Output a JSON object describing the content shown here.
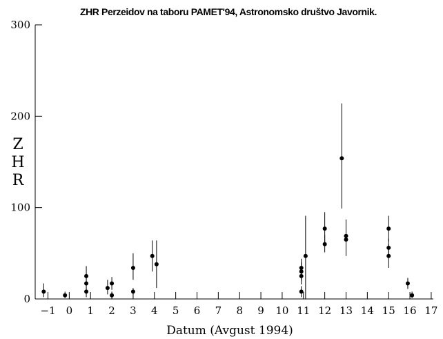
{
  "chart_data": {
    "type": "scatter",
    "title": "ZHR Perzeidov na taboru PAMET'94, Astronomsko društvo Javornik.",
    "xlabel": "Datum (Avgust 1994)",
    "ylabel_letters": [
      "Z",
      "H",
      "R"
    ],
    "xlim": [
      -1.6,
      17.1
    ],
    "ylim": [
      0,
      300
    ],
    "grid": false,
    "x_ticks": [
      -1,
      0,
      1,
      2,
      3,
      4,
      5,
      6,
      7,
      8,
      9,
      10,
      11,
      12,
      13,
      14,
      15,
      16,
      17
    ],
    "x_tick_labels": [
      "−1",
      "0",
      "1",
      "2",
      "3",
      "4",
      "5",
      "6",
      "7",
      "8",
      "9",
      "10",
      "11",
      "12",
      "13",
      "14",
      "15",
      "16",
      "17"
    ],
    "y_ticks": [
      0,
      100,
      200,
      300
    ],
    "y_tick_labels": [
      "0",
      "100",
      "200",
      "300"
    ],
    "points": [
      {
        "x": -1.2,
        "y": 8,
        "lo": 2,
        "hi": 17
      },
      {
        "x": -0.2,
        "y": 4,
        "lo": 1,
        "hi": 8
      },
      {
        "x": 0.8,
        "y": 25,
        "lo": 14,
        "hi": 36
      },
      {
        "x": 0.8,
        "y": 17,
        "lo": 9,
        "hi": 25
      },
      {
        "x": 0.8,
        "y": 8,
        "lo": 2,
        "hi": 13
      },
      {
        "x": 1.8,
        "y": 12,
        "lo": 5,
        "hi": 21
      },
      {
        "x": 2.0,
        "y": 17,
        "lo": 10,
        "hi": 24
      },
      {
        "x": 2.0,
        "y": 4,
        "lo": 1,
        "hi": 8
      },
      {
        "x": 3.0,
        "y": 34,
        "lo": 21,
        "hi": 50
      },
      {
        "x": 3.0,
        "y": 8,
        "lo": 4,
        "hi": 12
      },
      {
        "x": 3.9,
        "y": 47,
        "lo": 30,
        "hi": 64
      },
      {
        "x": 4.1,
        "y": 38,
        "lo": 12,
        "hi": 64
      },
      {
        "x": 10.9,
        "y": 34,
        "lo": 23,
        "hi": 44
      },
      {
        "x": 10.9,
        "y": 30,
        "lo": 20,
        "hi": 40
      },
      {
        "x": 10.9,
        "y": 25,
        "lo": 16,
        "hi": 34
      },
      {
        "x": 10.9,
        "y": 8,
        "lo": 2,
        "hi": 14
      },
      {
        "x": 11.1,
        "y": 47,
        "lo": 0,
        "hi": 91
      },
      {
        "x": 12.0,
        "y": 77,
        "lo": 60,
        "hi": 95
      },
      {
        "x": 12.0,
        "y": 60,
        "lo": 51,
        "hi": 70
      },
      {
        "x": 12.8,
        "y": 154,
        "lo": 99,
        "hi": 214
      },
      {
        "x": 13.0,
        "y": 69,
        "lo": 59,
        "hi": 80
      },
      {
        "x": 13.0,
        "y": 65,
        "lo": 47,
        "hi": 87
      },
      {
        "x": 15.0,
        "y": 77,
        "lo": 63,
        "hi": 91
      },
      {
        "x": 15.0,
        "y": 56,
        "lo": 46,
        "hi": 66
      },
      {
        "x": 15.0,
        "y": 47,
        "lo": 34,
        "hi": 60
      },
      {
        "x": 15.9,
        "y": 17,
        "lo": 11,
        "hi": 23
      },
      {
        "x": 16.1,
        "y": 4,
        "lo": 1,
        "hi": 8
      }
    ]
  }
}
